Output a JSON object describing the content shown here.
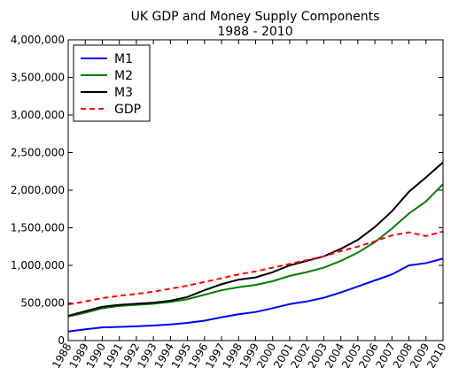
{
  "chart_data": {
    "type": "line",
    "title": "UK GDP and Money Supply Components",
    "subtitle": "1988 - 2010",
    "x": [
      1988,
      1989,
      1990,
      1991,
      1992,
      1993,
      1994,
      1995,
      1996,
      1997,
      1998,
      1999,
      2000,
      2001,
      2002,
      2003,
      2004,
      2005,
      2006,
      2007,
      2008,
      2009,
      2010
    ],
    "xlim": [
      1988,
      2010
    ],
    "xticks": [
      1988,
      1989,
      1990,
      1991,
      1992,
      1993,
      1994,
      1995,
      1996,
      1997,
      1998,
      1999,
      2000,
      2001,
      2002,
      2003,
      2004,
      2005,
      2006,
      2007,
      2008,
      2009,
      2010
    ],
    "ylim": [
      0,
      4000000
    ],
    "yticks": [
      0,
      {
        "value": 500000,
        "label": "500,000"
      },
      {
        "value": 1000000,
        "label": "1,000,000"
      },
      {
        "value": 1500000,
        "label": "1,500,000"
      },
      {
        "value": 2000000,
        "label": "2,000,000"
      },
      {
        "value": 2500000,
        "label": "2,500,000"
      },
      {
        "value": 3000000,
        "label": "3,000,000"
      },
      {
        "value": 3500000,
        "label": "3,500,000"
      },
      {
        "value": 4000000,
        "label": "4,000,000"
      }
    ],
    "legend": "upper left",
    "series": [
      {
        "name": "M1",
        "color": "#0000ff",
        "linestyle": "solid",
        "values": [
          120000,
          150000,
          175000,
          182000,
          190000,
          200000,
          215000,
          235000,
          265000,
          310000,
          350000,
          380000,
          430000,
          485000,
          520000,
          570000,
          640000,
          720000,
          800000,
          880000,
          1000000,
          1030000,
          1090000
        ]
      },
      {
        "name": "M2",
        "color": "#008000",
        "linestyle": "solid",
        "values": [
          320000,
          370000,
          430000,
          460000,
          475000,
          490000,
          515000,
          550000,
          610000,
          670000,
          710000,
          740000,
          790000,
          860000,
          910000,
          970000,
          1060000,
          1170000,
          1310000,
          1490000,
          1690000,
          1850000,
          2080000
        ]
      },
      {
        "name": "M3",
        "color": "#000000",
        "linestyle": "solid",
        "values": [
          330000,
          390000,
          450000,
          475000,
          490000,
          505000,
          530000,
          580000,
          670000,
          750000,
          810000,
          840000,
          910000,
          1000000,
          1060000,
          1120000,
          1220000,
          1340000,
          1510000,
          1720000,
          1980000,
          2170000,
          2370000
        ]
      },
      {
        "name": "GDP",
        "color": "#ff0000",
        "linestyle": "dashed",
        "values": [
          480000,
          520000,
          565000,
          595000,
          620000,
          650000,
          690000,
          730000,
          780000,
          830000,
          880000,
          920000,
          970000,
          1020000,
          1070000,
          1120000,
          1190000,
          1250000,
          1320000,
          1400000,
          1440000,
          1390000,
          1450000
        ]
      }
    ]
  }
}
